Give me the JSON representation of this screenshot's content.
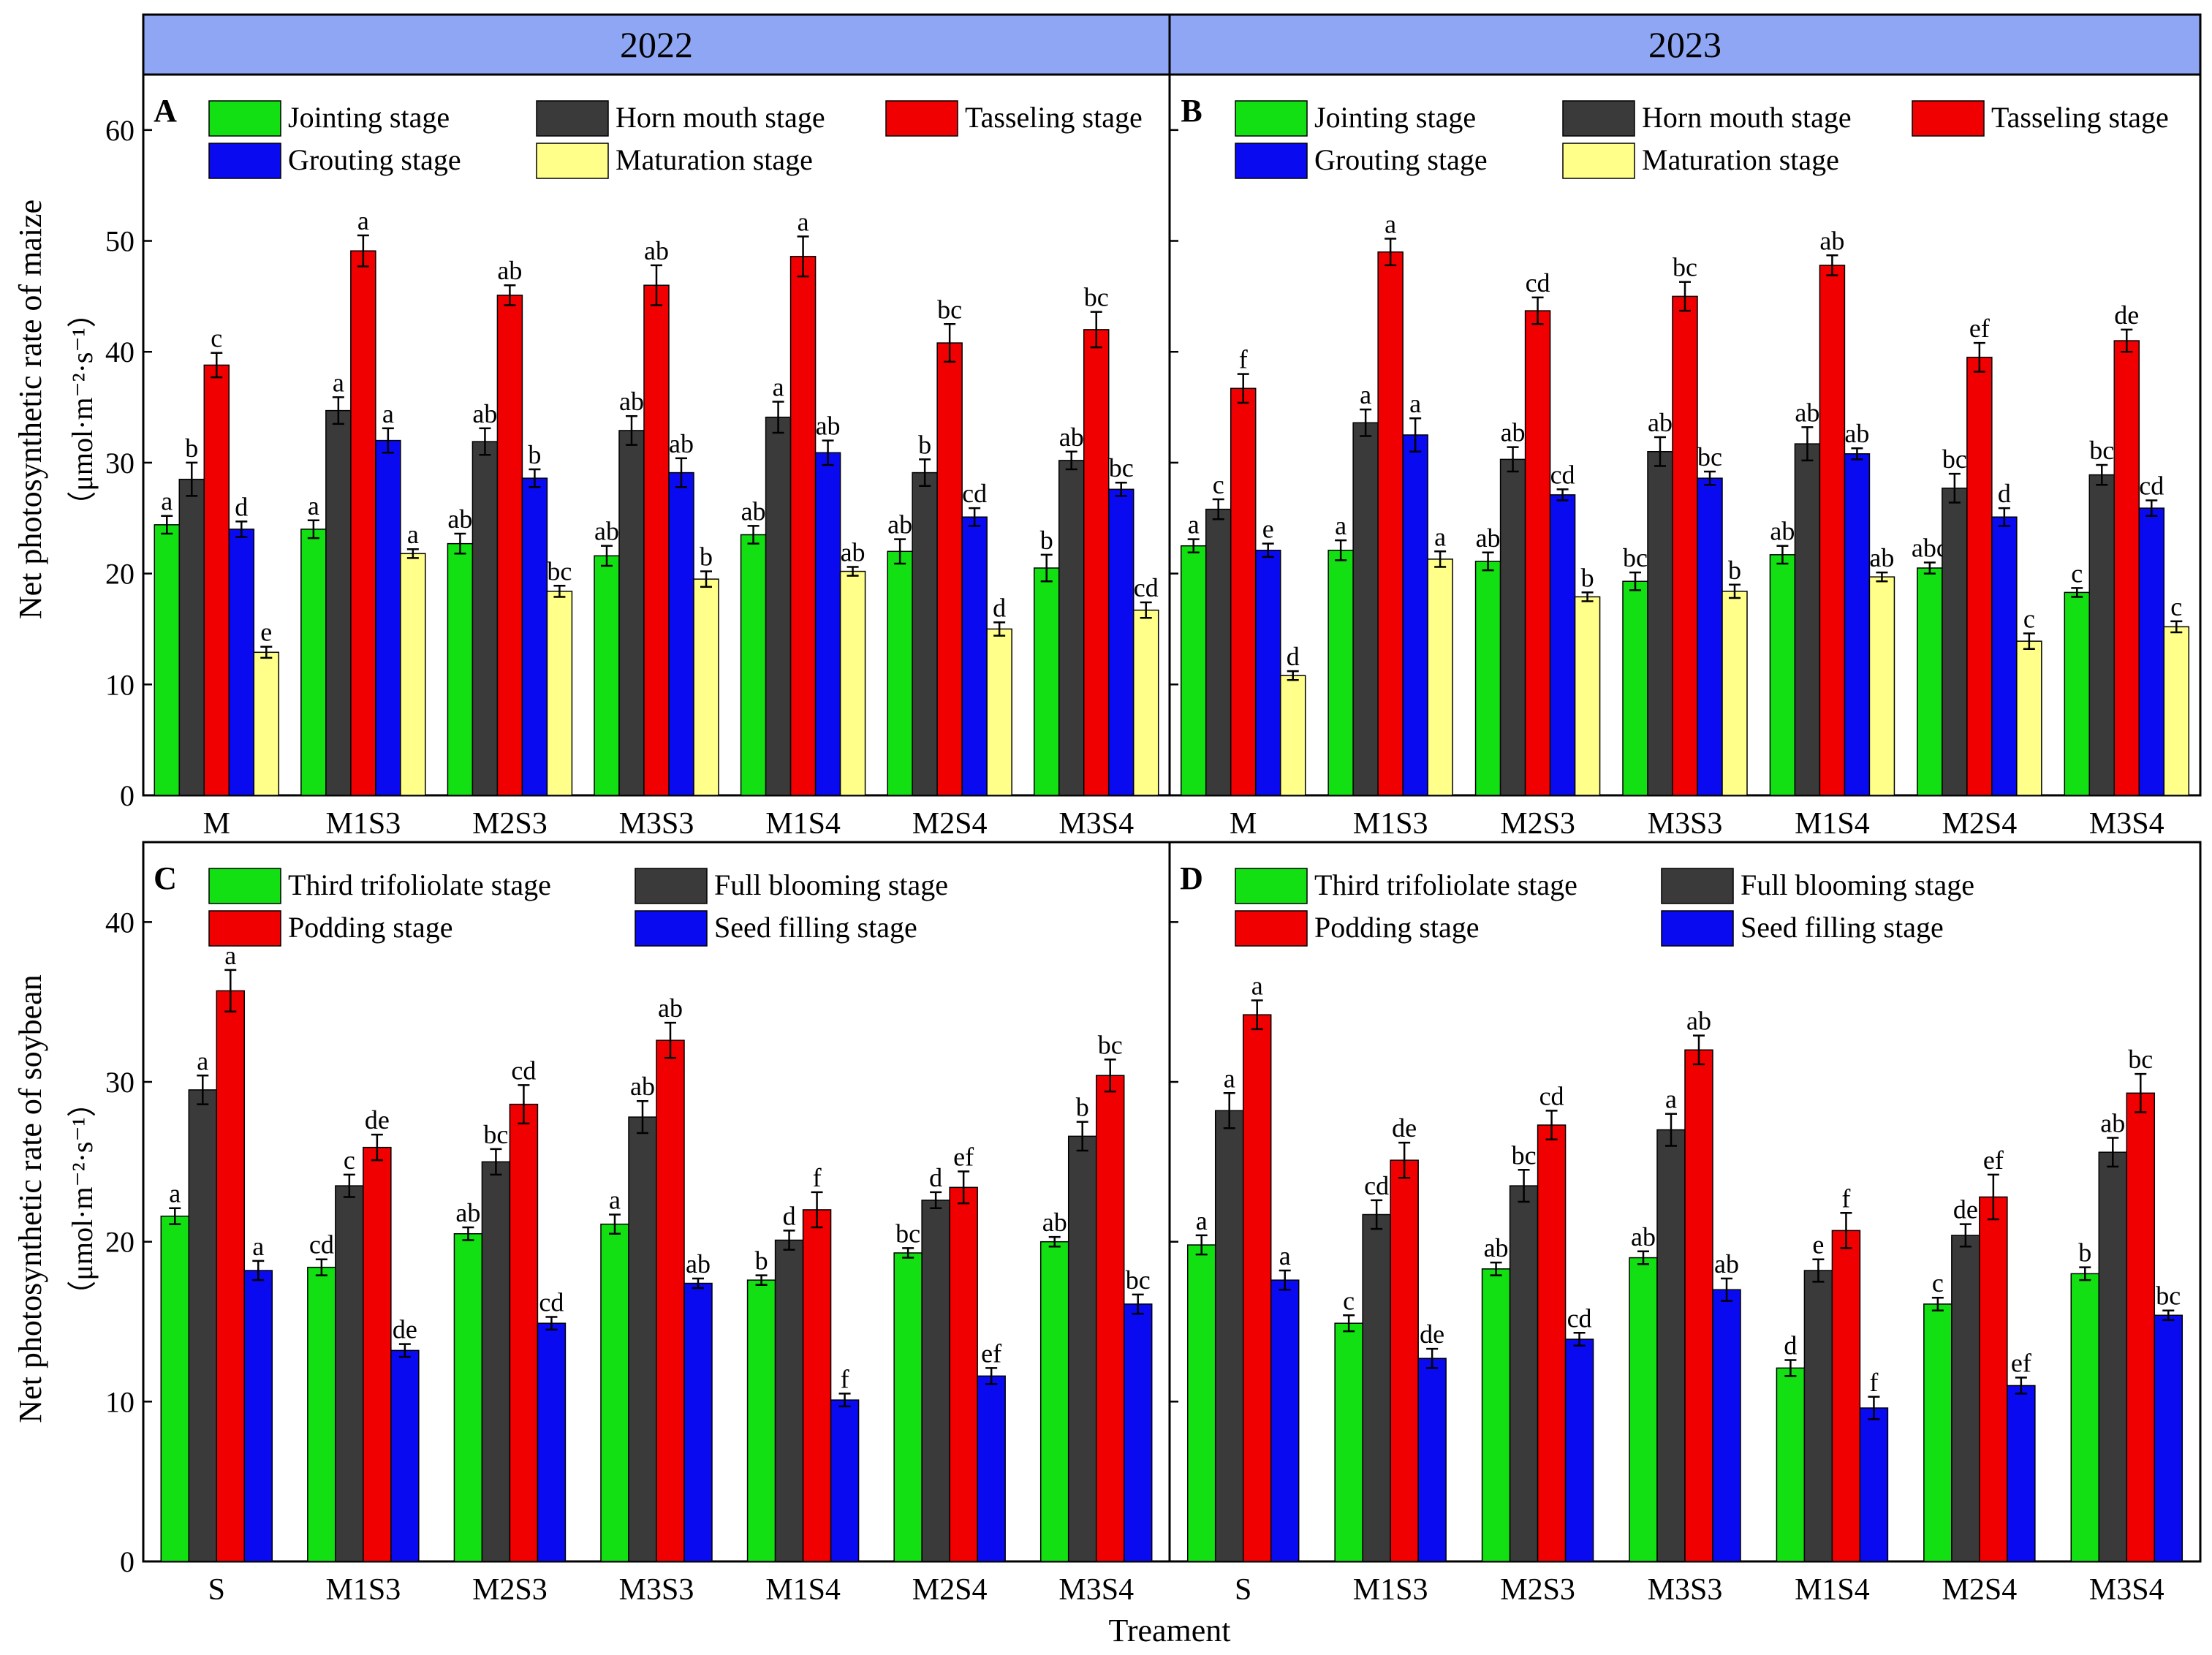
{
  "figure": {
    "years": [
      "2022",
      "2023"
    ],
    "xlabel": "Treament",
    "maize_ylabel": "Net photosynthetic rate of maize",
    "maize_unit": "（μmol·m⁻²·s⁻¹）",
    "soybean_ylabel": "Net photosynthetic rate of soybean",
    "soybean_unit": "（μmol·m⁻²·s⁻¹）"
  },
  "colors": {
    "green": "#12e012",
    "dark": "#3a3a3a",
    "red": "#f00000",
    "blue": "#0a0af0",
    "yellow": "#ffff8a",
    "year_strip": "#8fa6f5"
  },
  "chart_data": [
    {
      "type": "bar",
      "panel": "A",
      "year": "2022",
      "categories": [
        "M",
        "M1S3",
        "M2S3",
        "M3S3",
        "M1S4",
        "M2S4",
        "M3S4"
      ],
      "ylim": [
        0,
        65
      ],
      "yticks": [
        0,
        10,
        20,
        30,
        40,
        50,
        60
      ],
      "series": [
        {
          "name": "Jointing stage",
          "color": "#12e012",
          "values": [
            24.4,
            24.0,
            22.7,
            21.6,
            23.5,
            22.0,
            20.5
          ],
          "err": [
            0.8,
            0.8,
            0.9,
            0.9,
            0.8,
            1.1,
            1.2
          ],
          "letters": [
            "a",
            "a",
            "ab",
            "ab",
            "ab",
            "ab",
            "b"
          ]
        },
        {
          "name": "Horn mouth stage",
          "color": "#3a3a3a",
          "values": [
            28.5,
            34.7,
            31.9,
            32.9,
            34.1,
            29.1,
            30.2
          ],
          "err": [
            1.5,
            1.2,
            1.2,
            1.3,
            1.4,
            1.2,
            0.8
          ],
          "letters": [
            "b",
            "a",
            "ab",
            "ab",
            "a",
            "b",
            "ab"
          ]
        },
        {
          "name": "Tasseling stage",
          "color": "#f00000",
          "values": [
            38.8,
            49.1,
            45.1,
            46.0,
            48.6,
            40.8,
            42.0
          ],
          "err": [
            1.1,
            1.4,
            0.9,
            1.8,
            1.8,
            1.7,
            1.6
          ],
          "letters": [
            "c",
            "a",
            "ab",
            "ab",
            "a",
            "bc",
            "bc"
          ]
        },
        {
          "name": "Grouting stage",
          "color": "#0a0af0",
          "values": [
            24.0,
            32.0,
            28.6,
            29.1,
            30.9,
            25.1,
            27.6
          ],
          "err": [
            0.7,
            1.1,
            0.8,
            1.3,
            1.1,
            0.8,
            0.6
          ],
          "letters": [
            "d",
            "a",
            "b",
            "ab",
            "ab",
            "cd",
            "bc"
          ]
        },
        {
          "name": "Maturation stage",
          "color": "#ffff8a",
          "values": [
            12.9,
            21.8,
            18.4,
            19.5,
            20.2,
            15.0,
            16.7
          ],
          "err": [
            0.5,
            0.4,
            0.5,
            0.7,
            0.4,
            0.6,
            0.7
          ],
          "letters": [
            "e",
            "a",
            "bc",
            "b",
            "ab",
            "d",
            "cd"
          ]
        }
      ]
    },
    {
      "type": "bar",
      "panel": "B",
      "year": "2023",
      "categories": [
        "M",
        "M1S3",
        "M2S3",
        "M3S3",
        "M1S4",
        "M2S4",
        "M3S4"
      ],
      "ylim": [
        0,
        65
      ],
      "yticks": [
        0,
        10,
        20,
        30,
        40,
        50,
        60
      ],
      "series": [
        {
          "name": "Jointing stage",
          "color": "#12e012",
          "values": [
            22.5,
            22.1,
            21.1,
            19.3,
            21.7,
            20.5,
            18.3
          ],
          "err": [
            0.6,
            0.9,
            0.8,
            0.8,
            0.8,
            0.5,
            0.4
          ],
          "letters": [
            "a",
            "a",
            "ab",
            "bc",
            "ab",
            "abc",
            "c"
          ]
        },
        {
          "name": "Horn mouth stage",
          "color": "#3a3a3a",
          "values": [
            25.8,
            33.6,
            30.3,
            31.0,
            31.7,
            27.7,
            28.9
          ],
          "err": [
            0.9,
            1.2,
            1.1,
            1.3,
            1.5,
            1.3,
            0.9
          ],
          "letters": [
            "c",
            "a",
            "ab",
            "ab",
            "ab",
            "bc",
            "bc"
          ]
        },
        {
          "name": "Tasseling stage",
          "color": "#f00000",
          "values": [
            36.7,
            49.0,
            43.7,
            45.0,
            47.8,
            39.5,
            41.0
          ],
          "err": [
            1.3,
            1.2,
            1.2,
            1.3,
            0.9,
            1.3,
            1.0
          ],
          "letters": [
            "f",
            "a",
            "cd",
            "bc",
            "ab",
            "ef",
            "de"
          ]
        },
        {
          "name": "Grouting stage",
          "color": "#0a0af0",
          "values": [
            22.1,
            32.5,
            27.1,
            28.6,
            30.8,
            25.1,
            25.9
          ],
          "err": [
            0.6,
            1.5,
            0.5,
            0.6,
            0.5,
            0.8,
            0.7
          ],
          "letters": [
            "e",
            "a",
            "cd",
            "bc",
            "ab",
            "d",
            "cd"
          ]
        },
        {
          "name": "Maturation stage",
          "color": "#ffff8a",
          "values": [
            10.8,
            21.3,
            17.9,
            18.4,
            19.7,
            13.9,
            15.2
          ],
          "err": [
            0.4,
            0.7,
            0.4,
            0.6,
            0.4,
            0.7,
            0.5
          ],
          "letters": [
            "d",
            "a",
            "b",
            "b",
            "ab",
            "c",
            "c"
          ]
        }
      ]
    },
    {
      "type": "bar",
      "panel": "C",
      "year": "2022",
      "categories": [
        "S",
        "M1S3",
        "M2S3",
        "M3S3",
        "M1S4",
        "M2S4",
        "M3S4"
      ],
      "ylim": [
        0,
        45
      ],
      "yticks": [
        0,
        10,
        20,
        30,
        40
      ],
      "series": [
        {
          "name": "Third trifoliolate stage",
          "color": "#12e012",
          "values": [
            21.6,
            18.4,
            20.5,
            21.1,
            17.6,
            19.3,
            20.0
          ],
          "err": [
            0.5,
            0.5,
            0.4,
            0.6,
            0.3,
            0.3,
            0.3
          ],
          "letters": [
            "a",
            "cd",
            "ab",
            "a",
            "b",
            "bc",
            "ab"
          ]
        },
        {
          "name": "Full blooming stage",
          "color": "#3a3a3a",
          "values": [
            29.5,
            23.5,
            25.0,
            27.8,
            20.1,
            22.6,
            26.6
          ],
          "err": [
            0.9,
            0.7,
            0.8,
            1.0,
            0.6,
            0.5,
            0.9
          ],
          "letters": [
            "a",
            "c",
            "bc",
            "ab",
            "d",
            "d",
            "b"
          ]
        },
        {
          "name": "Podding stage",
          "color": "#f00000",
          "values": [
            35.7,
            25.9,
            28.6,
            32.6,
            22.0,
            23.4,
            30.4
          ],
          "err": [
            1.3,
            0.8,
            1.2,
            1.1,
            1.1,
            1.0,
            1.0
          ],
          "letters": [
            "a",
            "de",
            "cd",
            "ab",
            "f",
            "ef",
            "bc"
          ]
        },
        {
          "name": "Seed filling stage",
          "color": "#0a0af0",
          "values": [
            18.2,
            13.2,
            14.9,
            17.4,
            10.1,
            11.6,
            16.1
          ],
          "err": [
            0.6,
            0.4,
            0.4,
            0.3,
            0.4,
            0.5,
            0.6
          ],
          "letters": [
            "a",
            "de",
            "cd",
            "ab",
            "f",
            "ef",
            "bc"
          ]
        }
      ]
    },
    {
      "type": "bar",
      "panel": "D",
      "year": "2023",
      "categories": [
        "S",
        "M1S3",
        "M2S3",
        "M3S3",
        "M1S4",
        "M2S4",
        "M3S4"
      ],
      "ylim": [
        0,
        45
      ],
      "yticks": [
        0,
        10,
        20,
        30,
        40
      ],
      "series": [
        {
          "name": "Third trifoliolate stage",
          "color": "#12e012",
          "values": [
            19.8,
            14.9,
            18.3,
            19.0,
            12.1,
            16.1,
            18.0
          ],
          "err": [
            0.6,
            0.5,
            0.4,
            0.4,
            0.5,
            0.4,
            0.4
          ],
          "letters": [
            "a",
            "c",
            "ab",
            "ab",
            "d",
            "c",
            "b"
          ]
        },
        {
          "name": "Full blooming stage",
          "color": "#3a3a3a",
          "values": [
            28.2,
            21.7,
            23.5,
            27.0,
            18.2,
            20.4,
            25.6
          ],
          "err": [
            1.1,
            0.9,
            1.0,
            1.0,
            0.7,
            0.7,
            0.9
          ],
          "letters": [
            "a",
            "cd",
            "bc",
            "a",
            "e",
            "de",
            "ab"
          ]
        },
        {
          "name": "Podding stage",
          "color": "#f00000",
          "values": [
            34.2,
            25.1,
            27.3,
            32.0,
            20.7,
            22.8,
            29.3
          ],
          "err": [
            0.9,
            1.1,
            0.9,
            0.9,
            1.1,
            1.4,
            1.2
          ],
          "letters": [
            "a",
            "de",
            "cd",
            "ab",
            "f",
            "ef",
            "bc"
          ]
        },
        {
          "name": "Seed filling stage",
          "color": "#0a0af0",
          "values": [
            17.6,
            12.7,
            13.9,
            17.0,
            9.6,
            11.0,
            15.4
          ],
          "err": [
            0.6,
            0.6,
            0.4,
            0.7,
            0.7,
            0.5,
            0.3
          ],
          "letters": [
            "a",
            "de",
            "cd",
            "ab",
            "f",
            "ef",
            "bc"
          ]
        }
      ]
    }
  ]
}
